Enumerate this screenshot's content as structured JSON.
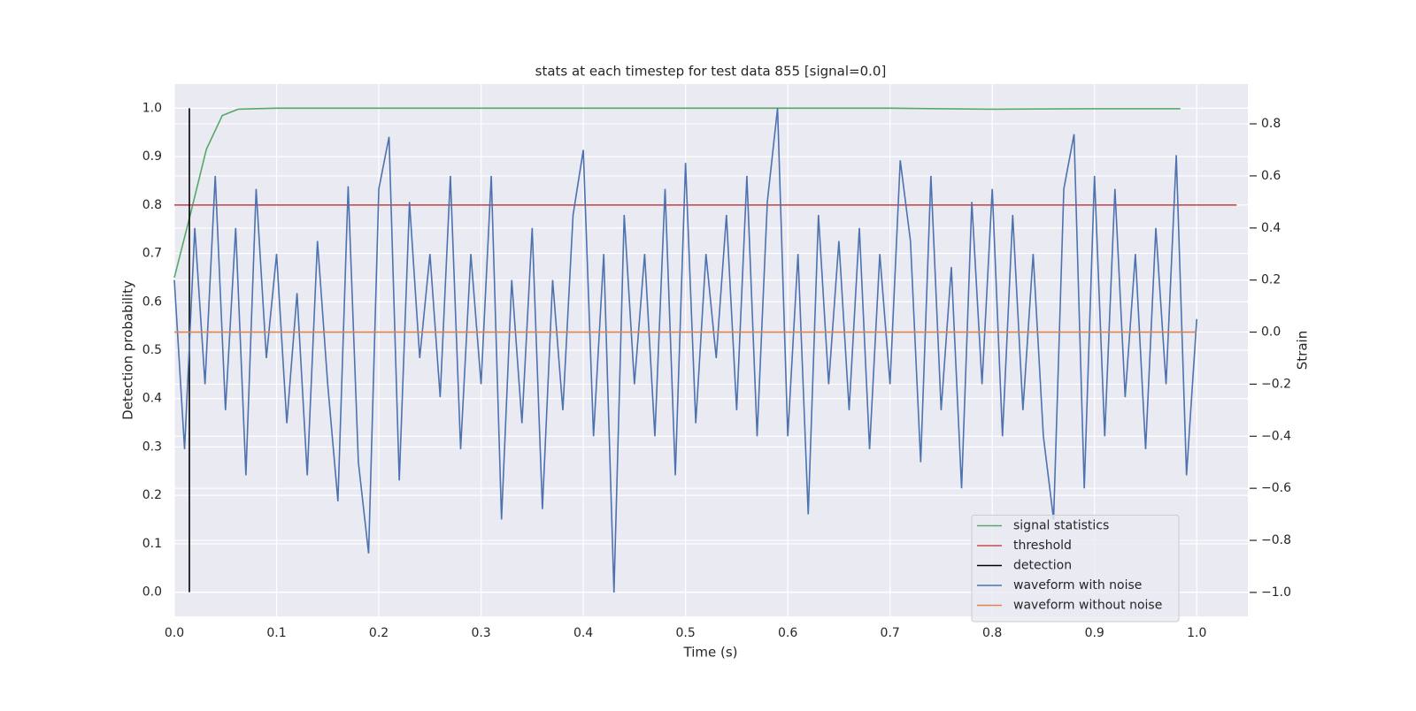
{
  "chart_data": {
    "type": "line",
    "title": "stats at each timestep for test data 855 [signal=0.0]",
    "xlabel": "Time (s)",
    "ylabel": "Detection probability",
    "y2label": "Strain",
    "xlim": [
      0,
      1.05
    ],
    "ylim": [
      -0.05,
      1.05
    ],
    "y2lim": [
      -1.092,
      0.953
    ],
    "xticks": [
      {
        "value": 0,
        "label": "0.0"
      },
      0.1,
      0.2,
      0.3,
      0.4,
      0.5,
      0.6,
      0.7,
      0.8,
      0.9,
      {
        "value": 1,
        "label": "1.0"
      }
    ],
    "yticks": [
      {
        "value": 0,
        "label": "0.0"
      },
      0.1,
      0.2,
      0.3,
      0.4,
      0.5,
      0.6,
      0.7,
      0.8,
      0.9,
      {
        "value": 1,
        "label": "1.0"
      }
    ],
    "y2ticks": [
      {
        "value": -1,
        "label": "−1.0"
      },
      {
        "value": -0.8,
        "label": "−0.8"
      },
      {
        "value": -0.6,
        "label": "−0.6"
      },
      {
        "value": -0.4,
        "label": "−0.4"
      },
      {
        "value": -0.2,
        "label": "−0.2"
      },
      {
        "value": 0,
        "label": "0.0"
      },
      0.2,
      0.4,
      0.6,
      0.8
    ],
    "grid": true,
    "legend": "lower right",
    "series": [
      {
        "name": "signal statistics",
        "color": "#55a868",
        "x": [
          0,
          0.0156,
          0.0313,
          0.0469,
          0.0625,
          0.0781,
          0.1,
          0.2,
          0.3,
          0.4,
          0.5,
          0.6,
          0.7,
          0.75,
          0.8,
          0.9,
          0.984
        ],
        "values": [
          0.65,
          0.78,
          0.915,
          0.985,
          0.998,
          0.999,
          1.0,
          1.0,
          1.0,
          1.0,
          1.0,
          1.0,
          1.0,
          0.999,
          0.998,
          0.999,
          0.999
        ]
      },
      {
        "name": "threshold",
        "color": "#c44e52",
        "x": [
          0,
          1.039
        ],
        "values": [
          0.8,
          0.8
        ]
      },
      {
        "name": "detection",
        "color": "#000000",
        "x": [
          0.0147,
          0.0147
        ],
        "values": [
          0,
          1
        ]
      },
      {
        "name": "waveform with noise",
        "color": "#4c72b0",
        "axis": "y2",
        "x": [
          0,
          0.01,
          0.02,
          0.03,
          0.04,
          0.05,
          0.06,
          0.07,
          0.08,
          0.09,
          0.1,
          0.11,
          0.12,
          0.13,
          0.14,
          0.15,
          0.16,
          0.17,
          0.18,
          0.19,
          0.2,
          0.21,
          0.22,
          0.23,
          0.24,
          0.25,
          0.26,
          0.27,
          0.28,
          0.29,
          0.3,
          0.31,
          0.32,
          0.33,
          0.34,
          0.35,
          0.36,
          0.37,
          0.38,
          0.39,
          0.4,
          0.41,
          0.42,
          0.43,
          0.44,
          0.45,
          0.46,
          0.47,
          0.48,
          0.49,
          0.5,
          0.51,
          0.52,
          0.53,
          0.54,
          0.55,
          0.56,
          0.57,
          0.58,
          0.59,
          0.6,
          0.61,
          0.62,
          0.63,
          0.64,
          0.65,
          0.66,
          0.67,
          0.68,
          0.69,
          0.7,
          0.71,
          0.72,
          0.73,
          0.74,
          0.75,
          0.76,
          0.77,
          0.78,
          0.79,
          0.8,
          0.81,
          0.82,
          0.83,
          0.84,
          0.85,
          0.86,
          0.87,
          0.88,
          0.89,
          0.9,
          0.91,
          0.92,
          0.93,
          0.94,
          0.95,
          0.96,
          0.97,
          0.98,
          0.99,
          1.0
        ],
        "values": [
          0.2,
          -0.45,
          0.4,
          -0.2,
          0.6,
          -0.3,
          0.4,
          -0.55,
          0.55,
          -0.1,
          0.3,
          -0.35,
          0.15,
          -0.55,
          0.35,
          -0.2,
          -0.65,
          0.56,
          -0.5,
          -0.85,
          0.55,
          0.75,
          -0.57,
          0.5,
          -0.1,
          0.3,
          -0.25,
          0.6,
          -0.45,
          0.3,
          -0.2,
          0.6,
          -0.72,
          0.2,
          -0.35,
          0.4,
          -0.68,
          0.2,
          -0.3,
          0.45,
          0.7,
          -0.4,
          0.3,
          -1.0,
          0.45,
          -0.2,
          0.3,
          -0.4,
          0.55,
          -0.55,
          0.65,
          -0.35,
          0.3,
          -0.1,
          0.45,
          -0.3,
          0.6,
          -0.4,
          0.5,
          0.86,
          -0.4,
          0.3,
          -0.7,
          0.45,
          -0.2,
          0.35,
          -0.3,
          0.4,
          -0.45,
          0.3,
          -0.2,
          0.66,
          0.35,
          -0.5,
          0.6,
          -0.3,
          0.25,
          -0.6,
          0.5,
          -0.2,
          0.55,
          -0.4,
          0.45,
          -0.3,
          0.3,
          -0.4,
          -0.72,
          0.55,
          0.76,
          -0.6,
          0.6,
          -0.4,
          0.55,
          -0.25,
          0.3,
          -0.45,
          0.4,
          -0.2,
          0.68,
          -0.55,
          0.05
        ]
      },
      {
        "name": "waveform without noise",
        "color": "#dd8452",
        "axis": "y2",
        "x": [
          0,
          1
        ],
        "values": [
          0,
          0
        ]
      }
    ]
  }
}
